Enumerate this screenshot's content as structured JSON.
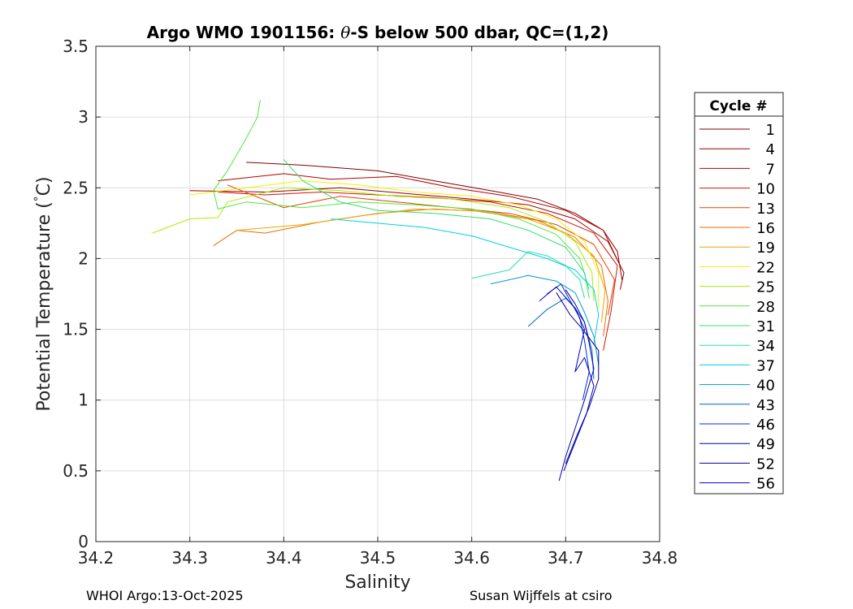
{
  "chart_data": {
    "type": "line",
    "title": "Argo WMO 1901156: θ-S below 500 dbar,  QC=(1,2)",
    "title_parts": {
      "prefix": "Argo WMO 1901156: ",
      "theta": "θ",
      "suffix": "-S below 500 dbar,  QC=(1,2)"
    },
    "xlabel": "Salinity",
    "ylabel_prefix": "Potential Temperature (",
    "ylabel_degree": "°",
    "ylabel_suffix": "C)",
    "xlim": [
      34.2,
      34.8
    ],
    "ylim": [
      0,
      3.5
    ],
    "xticks": [
      34.2,
      34.3,
      34.4,
      34.5,
      34.6,
      34.7,
      34.8
    ],
    "xtick_labels": [
      "34.2",
      "34.3",
      "34.4",
      "34.5",
      "34.6",
      "34.7",
      "34.8"
    ],
    "yticks": [
      0,
      0.5,
      1,
      1.5,
      2,
      2.5,
      3,
      3.5
    ],
    "ytick_labels": [
      "0",
      "0.5",
      "1",
      "1.5",
      "2",
      "2.5",
      "3",
      "3.5"
    ],
    "grid": true,
    "legend_title": "Cycle #",
    "legend_position": "right outside",
    "legend": [
      {
        "name": "1",
        "color": "#800000"
      },
      {
        "name": "4",
        "color": "#9a0000"
      },
      {
        "name": "7",
        "color": "#b40000"
      },
      {
        "name": "10",
        "color": "#d21400"
      },
      {
        "name": "13",
        "color": "#e84000"
      },
      {
        "name": "16",
        "color": "#f06a00"
      },
      {
        "name": "19",
        "color": "#e8a800"
      },
      {
        "name": "22",
        "color": "#f2f000"
      },
      {
        "name": "25",
        "color": "#a8f000"
      },
      {
        "name": "28",
        "color": "#50e83c"
      },
      {
        "name": "31",
        "color": "#2ee070"
      },
      {
        "name": "34",
        "color": "#20e0b0"
      },
      {
        "name": "37",
        "color": "#00d0e8"
      },
      {
        "name": "40",
        "color": "#0098d8"
      },
      {
        "name": "43",
        "color": "#0060d0"
      },
      {
        "name": "46",
        "color": "#0030d0"
      },
      {
        "name": "49",
        "color": "#0000a8"
      },
      {
        "name": "52",
        "color": "#00008c"
      },
      {
        "name": "56",
        "color": "#0000c8"
      }
    ],
    "series": [
      {
        "cycle": "1",
        "color": "#800000",
        "points": [
          [
            34.36,
            2.68
          ],
          [
            34.42,
            2.66
          ],
          [
            34.5,
            2.62
          ],
          [
            34.56,
            2.55
          ],
          [
            34.62,
            2.48
          ],
          [
            34.67,
            2.42
          ],
          [
            34.71,
            2.32
          ],
          [
            34.74,
            2.2
          ],
          [
            34.755,
            2.05
          ],
          [
            34.76,
            1.85
          ]
        ]
      },
      {
        "cycle": "4",
        "color": "#9a0000",
        "points": [
          [
            34.3,
            2.48
          ],
          [
            34.38,
            2.47
          ],
          [
            34.46,
            2.5
          ],
          [
            34.53,
            2.46
          ],
          [
            34.6,
            2.42
          ],
          [
            34.66,
            2.38
          ],
          [
            34.71,
            2.28
          ],
          [
            34.745,
            2.12
          ],
          [
            34.762,
            1.9
          ],
          [
            34.758,
            1.78
          ]
        ]
      },
      {
        "cycle": "7",
        "color": "#b40000",
        "points": [
          [
            34.33,
            2.55
          ],
          [
            34.4,
            2.6
          ],
          [
            34.45,
            2.56
          ],
          [
            34.52,
            2.58
          ],
          [
            34.58,
            2.5
          ],
          [
            34.64,
            2.44
          ],
          [
            34.7,
            2.34
          ],
          [
            34.74,
            2.2
          ],
          [
            34.758,
            1.95
          ]
        ]
      },
      {
        "cycle": "10",
        "color": "#d21400",
        "points": [
          [
            34.33,
            2.47
          ],
          [
            34.38,
            2.45
          ],
          [
            34.44,
            2.47
          ],
          [
            34.5,
            2.45
          ],
          [
            34.56,
            2.43
          ],
          [
            34.62,
            2.4
          ],
          [
            34.68,
            2.32
          ],
          [
            34.73,
            2.18
          ],
          [
            34.755,
            1.95
          ],
          [
            34.748,
            1.62
          ],
          [
            34.74,
            1.35
          ]
        ]
      },
      {
        "cycle": "13",
        "color": "#e84000",
        "points": [
          [
            34.34,
            2.52
          ],
          [
            34.4,
            2.36
          ],
          [
            34.46,
            2.44
          ],
          [
            34.52,
            2.4
          ],
          [
            34.58,
            2.36
          ],
          [
            34.64,
            2.32
          ],
          [
            34.69,
            2.24
          ],
          [
            34.73,
            2.1
          ],
          [
            34.752,
            1.85
          ],
          [
            34.745,
            1.6
          ]
        ]
      },
      {
        "cycle": "16",
        "color": "#f06a00",
        "points": [
          [
            34.325,
            2.09
          ],
          [
            34.35,
            2.2
          ],
          [
            34.38,
            2.18
          ],
          [
            34.44,
            2.26
          ],
          [
            34.5,
            2.32
          ],
          [
            34.56,
            2.35
          ],
          [
            34.62,
            2.33
          ],
          [
            34.67,
            2.27
          ],
          [
            34.71,
            2.15
          ],
          [
            34.738,
            1.95
          ],
          [
            34.745,
            1.7
          ],
          [
            34.74,
            1.45
          ]
        ]
      },
      {
        "cycle": "19",
        "color": "#e8a800",
        "points": [
          [
            34.35,
            2.2
          ],
          [
            34.42,
            2.24
          ],
          [
            34.48,
            2.3
          ],
          [
            34.54,
            2.35
          ],
          [
            34.6,
            2.34
          ],
          [
            34.66,
            2.28
          ],
          [
            34.7,
            2.18
          ],
          [
            34.73,
            2.02
          ],
          [
            34.742,
            1.78
          ],
          [
            34.738,
            1.55
          ]
        ]
      },
      {
        "cycle": "22",
        "color": "#f2f000",
        "points": [
          [
            34.3,
            2.45
          ],
          [
            34.36,
            2.5
          ],
          [
            34.42,
            2.55
          ],
          [
            34.48,
            2.52
          ],
          [
            34.54,
            2.47
          ],
          [
            34.6,
            2.44
          ],
          [
            34.65,
            2.38
          ],
          [
            34.69,
            2.28
          ],
          [
            34.72,
            2.12
          ],
          [
            34.735,
            1.9
          ],
          [
            34.735,
            1.65
          ]
        ]
      },
      {
        "cycle": "25",
        "color": "#a8f000",
        "points": [
          [
            34.26,
            2.18
          ],
          [
            34.3,
            2.28
          ],
          [
            34.33,
            2.29
          ],
          [
            34.34,
            2.4
          ],
          [
            34.4,
            2.5
          ],
          [
            34.46,
            2.48
          ],
          [
            34.52,
            2.44
          ],
          [
            34.58,
            2.42
          ],
          [
            34.64,
            2.36
          ],
          [
            34.68,
            2.26
          ],
          [
            34.71,
            2.12
          ],
          [
            34.728,
            1.9
          ],
          [
            34.73,
            1.7
          ]
        ]
      },
      {
        "cycle": "28",
        "color": "#50e83c",
        "points": [
          [
            34.375,
            3.12
          ],
          [
            34.372,
            3.0
          ],
          [
            34.36,
            2.85
          ],
          [
            34.34,
            2.62
          ],
          [
            34.325,
            2.48
          ],
          [
            34.33,
            2.35
          ],
          [
            34.36,
            2.4
          ],
          [
            34.42,
            2.36
          ],
          [
            34.48,
            2.4
          ],
          [
            34.54,
            2.38
          ],
          [
            34.6,
            2.35
          ],
          [
            34.65,
            2.28
          ],
          [
            34.69,
            2.17
          ],
          [
            34.715,
            2.0
          ],
          [
            34.725,
            1.78
          ]
        ]
      },
      {
        "cycle": "31",
        "color": "#2ee070",
        "points": [
          [
            34.4,
            2.7
          ],
          [
            34.42,
            2.55
          ],
          [
            34.46,
            2.4
          ],
          [
            34.5,
            2.34
          ],
          [
            34.56,
            2.32
          ],
          [
            34.62,
            2.28
          ],
          [
            34.66,
            2.2
          ],
          [
            34.7,
            2.08
          ],
          [
            34.72,
            1.9
          ],
          [
            34.725,
            1.72
          ]
        ]
      },
      {
        "cycle": "34",
        "color": "#20e0b0",
        "points": [
          [
            34.6,
            1.86
          ],
          [
            34.64,
            1.92
          ],
          [
            34.66,
            2.05
          ],
          [
            34.68,
            2.02
          ],
          [
            34.7,
            1.95
          ],
          [
            34.715,
            1.85
          ],
          [
            34.72,
            1.72
          ]
        ]
      },
      {
        "cycle": "37",
        "color": "#00d0e8",
        "points": [
          [
            34.45,
            2.28
          ],
          [
            34.5,
            2.25
          ],
          [
            34.55,
            2.22
          ],
          [
            34.6,
            2.16
          ],
          [
            34.64,
            2.08
          ],
          [
            34.68,
            2.0
          ],
          [
            34.71,
            1.92
          ],
          [
            34.73,
            1.78
          ],
          [
            34.735,
            1.6
          ],
          [
            34.73,
            1.4
          ]
        ]
      },
      {
        "cycle": "40",
        "color": "#0098d8",
        "points": [
          [
            34.62,
            1.82
          ],
          [
            34.66,
            1.88
          ],
          [
            34.69,
            1.84
          ],
          [
            34.71,
            1.76
          ],
          [
            34.72,
            1.62
          ],
          [
            34.73,
            1.45
          ],
          [
            34.735,
            1.25
          ]
        ]
      },
      {
        "cycle": "43",
        "color": "#0060d0",
        "points": [
          [
            34.66,
            1.52
          ],
          [
            34.68,
            1.64
          ],
          [
            34.7,
            1.72
          ],
          [
            34.71,
            1.65
          ],
          [
            34.72,
            1.55
          ],
          [
            34.728,
            1.35
          ],
          [
            34.73,
            1.15
          ]
        ]
      },
      {
        "cycle": "46",
        "color": "#0030d0",
        "points": [
          [
            34.68,
            1.75
          ],
          [
            34.695,
            1.82
          ],
          [
            34.705,
            1.7
          ],
          [
            34.715,
            1.58
          ],
          [
            34.72,
            1.42
          ],
          [
            34.725,
            1.2
          ],
          [
            34.718,
            1.0
          ]
        ]
      },
      {
        "cycle": "49",
        "color": "#0000a8",
        "points": [
          [
            34.7,
            1.78
          ],
          [
            34.71,
            1.68
          ],
          [
            34.72,
            1.55
          ],
          [
            34.725,
            1.4
          ],
          [
            34.73,
            1.22
          ],
          [
            34.72,
            1.0
          ],
          [
            34.71,
            0.8
          ],
          [
            34.7,
            0.6
          ],
          [
            34.693,
            0.43
          ]
        ]
      },
      {
        "cycle": "52",
        "color": "#00008c",
        "points": [
          [
            34.69,
            1.76
          ],
          [
            34.705,
            1.6
          ],
          [
            34.718,
            1.5
          ],
          [
            34.735,
            1.35
          ],
          [
            34.735,
            1.15
          ],
          [
            34.725,
            0.95
          ],
          [
            34.712,
            0.75
          ],
          [
            34.7,
            0.55
          ]
        ]
      },
      {
        "cycle": "56",
        "color": "#0000c8",
        "points": [
          [
            34.672,
            1.7
          ],
          [
            34.69,
            1.8
          ],
          [
            34.71,
            1.65
          ],
          [
            34.72,
            1.5
          ],
          [
            34.71,
            1.2
          ],
          [
            34.72,
            1.3
          ],
          [
            34.73,
            1.1
          ],
          [
            34.722,
            0.9
          ],
          [
            34.71,
            0.7
          ],
          [
            34.698,
            0.5
          ]
        ]
      }
    ]
  },
  "footer": {
    "left": "WHOI Argo:13-Oct-2025",
    "right": "Susan Wijffels at csiro"
  }
}
